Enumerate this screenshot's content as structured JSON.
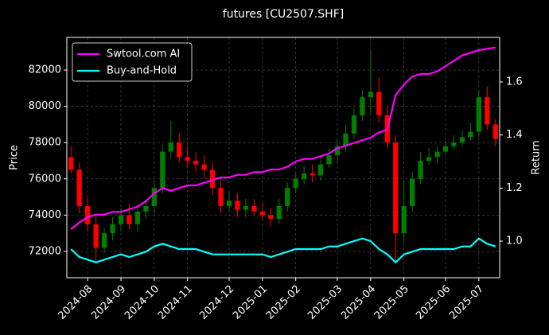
{
  "chart_data": {
    "type": "candlestick",
    "title": "futures [CU2507.SHF]",
    "ylabel": "Price",
    "y2label": "Return",
    "categories": [
      null,
      null,
      "2024-08",
      null,
      null,
      null,
      "2024-09",
      null,
      null,
      null,
      "2024-10",
      null,
      null,
      null,
      "2024-11",
      null,
      null,
      null,
      null,
      "2024-12",
      null,
      null,
      null,
      "2025-01",
      null,
      null,
      null,
      "2025-02",
      null,
      null,
      null,
      null,
      "2025-03",
      null,
      null,
      null,
      "2025-04",
      null,
      null,
      null,
      "2025-05",
      null,
      null,
      null,
      null,
      "2025-06",
      null,
      null,
      null,
      "2025-07",
      null,
      null
    ],
    "open": [
      77200,
      76500,
      74500,
      73500,
      72200,
      73000,
      73500,
      74000,
      73500,
      74200,
      74500,
      75500,
      77500,
      78000,
      77200,
      77000,
      76800,
      76500,
      75500,
      74500,
      74800,
      74300,
      74500,
      74200,
      74000,
      73800,
      74500,
      75500,
      76000,
      76300,
      76200,
      76800,
      77300,
      77800,
      78500,
      79500,
      80500,
      80800,
      79500,
      78000,
      73000,
      74500,
      76000,
      77000,
      77200,
      77500,
      77800,
      78000,
      78300,
      78600,
      80500,
      79000
    ],
    "high": [
      77800,
      76900,
      75000,
      74100,
      73300,
      73900,
      74400,
      74600,
      74500,
      74900,
      75900,
      77900,
      79200,
      78500,
      77800,
      77500,
      77300,
      76900,
      75900,
      75300,
      75200,
      74900,
      74900,
      74700,
      74400,
      74900,
      75800,
      76300,
      76700,
      76800,
      77100,
      77700,
      78200,
      79000,
      79900,
      80900,
      83100,
      81600,
      80000,
      78400,
      75900,
      76400,
      77500,
      77700,
      77800,
      78100,
      78400,
      78700,
      79100,
      80900,
      81100,
      79300
    ],
    "low": [
      76300,
      74100,
      73100,
      71500,
      71900,
      72600,
      73100,
      73200,
      73100,
      73800,
      74100,
      75200,
      77100,
      76900,
      76600,
      76400,
      76000,
      75100,
      74100,
      74200,
      73900,
      73900,
      74000,
      73700,
      73400,
      73500,
      74200,
      75200,
      75700,
      75800,
      75900,
      76600,
      76900,
      77500,
      78200,
      79200,
      79600,
      79100,
      77700,
      71500,
      72500,
      74200,
      75700,
      76800,
      76900,
      77300,
      77600,
      77800,
      78100,
      78300,
      78700,
      77800
    ],
    "close": [
      76500,
      74500,
      73500,
      72200,
      73000,
      73500,
      74000,
      73500,
      74200,
      74500,
      75500,
      77500,
      78000,
      77200,
      77000,
      76800,
      76500,
      75500,
      74500,
      74800,
      74300,
      74500,
      74200,
      74000,
      73800,
      74500,
      75500,
      76000,
      76300,
      76200,
      76800,
      77300,
      77800,
      78500,
      79500,
      80500,
      80800,
      79500,
      78000,
      73000,
      74500,
      76000,
      77000,
      77200,
      77500,
      77800,
      78000,
      78300,
      78600,
      80500,
      79000,
      78200
    ],
    "up_color": "#008000",
    "down_color": "#ff0000",
    "series": [
      {
        "name": "Swtool.com AI",
        "color": "#ff00ff",
        "axis": "y2",
        "values": [
          1.045,
          1.07,
          1.09,
          1.1,
          1.1,
          1.11,
          1.11,
          1.12,
          1.13,
          1.15,
          1.18,
          1.2,
          1.19,
          1.2,
          1.21,
          1.21,
          1.22,
          1.23,
          1.24,
          1.24,
          1.25,
          1.25,
          1.26,
          1.26,
          1.27,
          1.27,
          1.28,
          1.3,
          1.31,
          1.31,
          1.32,
          1.33,
          1.35,
          1.36,
          1.37,
          1.38,
          1.39,
          1.41,
          1.42,
          1.55,
          1.59,
          1.62,
          1.63,
          1.63,
          1.64,
          1.66,
          1.68,
          1.7,
          1.71,
          1.72,
          1.725,
          1.73
        ]
      },
      {
        "name": "Buy-and-Hold",
        "color": "#00ffff",
        "axis": "y2",
        "values": [
          0.97,
          0.94,
          0.93,
          0.92,
          0.93,
          0.94,
          0.95,
          0.94,
          0.95,
          0.96,
          0.98,
          0.99,
          0.98,
          0.97,
          0.97,
          0.97,
          0.96,
          0.95,
          0.95,
          0.95,
          0.95,
          0.95,
          0.95,
          0.95,
          0.94,
          0.95,
          0.96,
          0.97,
          0.97,
          0.97,
          0.97,
          0.98,
          0.98,
          0.99,
          1.0,
          1.01,
          1.0,
          0.97,
          0.95,
          0.92,
          0.95,
          0.96,
          0.97,
          0.97,
          0.97,
          0.97,
          0.97,
          0.98,
          0.98,
          1.01,
          0.99,
          0.98
        ]
      }
    ],
    "ylim": [
      70550,
      83800
    ],
    "yticks": [
      72000,
      74000,
      76000,
      78000,
      80000,
      82000
    ],
    "y2lim": [
      0.862,
      1.768
    ],
    "y2ticks": [
      {
        "value": 1.0,
        "label": "1.0"
      },
      {
        "value": 1.2,
        "label": "1.2"
      },
      {
        "value": 1.4,
        "label": "1.4"
      },
      {
        "value": 1.6,
        "label": "1.6"
      }
    ],
    "grid": true,
    "legend": "upper left"
  }
}
